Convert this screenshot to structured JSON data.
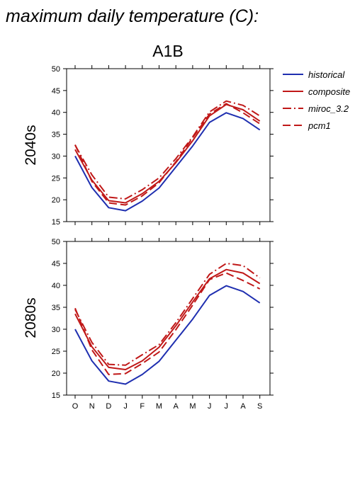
{
  "title": "maximum daily temperature (C):",
  "scenario": "A1B",
  "legend": [
    {
      "name": "historical",
      "color": "#1f2fb0",
      "dash": "solid"
    },
    {
      "name": "composite",
      "color": "#c01818",
      "dash": "solid"
    },
    {
      "name": "miroc_3.2",
      "color": "#c01818",
      "dash": "dashdot"
    },
    {
      "name": "pcm1",
      "color": "#c01818",
      "dash": "dash"
    }
  ],
  "chart_data": [
    {
      "type": "line",
      "row_label": "2040s",
      "categories": [
        "O",
        "N",
        "D",
        "J",
        "F",
        "M",
        "A",
        "M",
        "J",
        "J",
        "A",
        "S"
      ],
      "ylim": [
        15,
        50
      ],
      "yticks": [
        15,
        20,
        25,
        30,
        35,
        40,
        45,
        50
      ],
      "series": [
        {
          "name": "historical",
          "values": [
            30.0,
            22.8,
            18.2,
            17.5,
            19.7,
            22.7,
            27.5,
            32.3,
            37.7,
            39.9,
            38.6,
            36.0
          ]
        },
        {
          "name": "composite",
          "values": [
            31.5,
            24.5,
            19.8,
            19.3,
            21.4,
            24.2,
            28.5,
            33.5,
            39.2,
            41.8,
            40.6,
            38.0
          ]
        },
        {
          "name": "miroc_3.2",
          "values": [
            32.5,
            25.7,
            20.6,
            20.2,
            22.3,
            25.0,
            29.4,
            34.4,
            40.1,
            42.6,
            41.6,
            39.2
          ]
        },
        {
          "name": "pcm1",
          "values": [
            32.6,
            24.2,
            19.3,
            18.8,
            20.9,
            23.9,
            28.7,
            34.2,
            39.6,
            42.0,
            39.9,
            37.4
          ]
        }
      ]
    },
    {
      "type": "line",
      "row_label": "2080s",
      "categories": [
        "O",
        "N",
        "D",
        "J",
        "F",
        "M",
        "A",
        "M",
        "J",
        "J",
        "A",
        "S"
      ],
      "ylim": [
        15,
        50
      ],
      "yticks": [
        15,
        20,
        25,
        30,
        35,
        40,
        45,
        50
      ],
      "series": [
        {
          "name": "historical",
          "values": [
            30.0,
            22.8,
            18.2,
            17.5,
            19.7,
            22.7,
            27.5,
            32.3,
            37.7,
            39.9,
            38.6,
            36.0
          ]
        },
        {
          "name": "composite",
          "values": [
            33.5,
            26.0,
            21.3,
            20.8,
            22.8,
            25.9,
            30.8,
            36.2,
            41.5,
            43.6,
            42.8,
            40.4
          ]
        },
        {
          "name": "miroc_3.2",
          "values": [
            34.5,
            27.0,
            22.0,
            21.8,
            24.2,
            26.5,
            31.5,
            37.0,
            42.5,
            45.0,
            44.5,
            41.7
          ]
        },
        {
          "name": "pcm1",
          "values": [
            34.8,
            25.3,
            19.7,
            19.9,
            22.2,
            24.8,
            29.9,
            35.5,
            41.3,
            42.8,
            41.1,
            39.2
          ]
        }
      ]
    }
  ]
}
